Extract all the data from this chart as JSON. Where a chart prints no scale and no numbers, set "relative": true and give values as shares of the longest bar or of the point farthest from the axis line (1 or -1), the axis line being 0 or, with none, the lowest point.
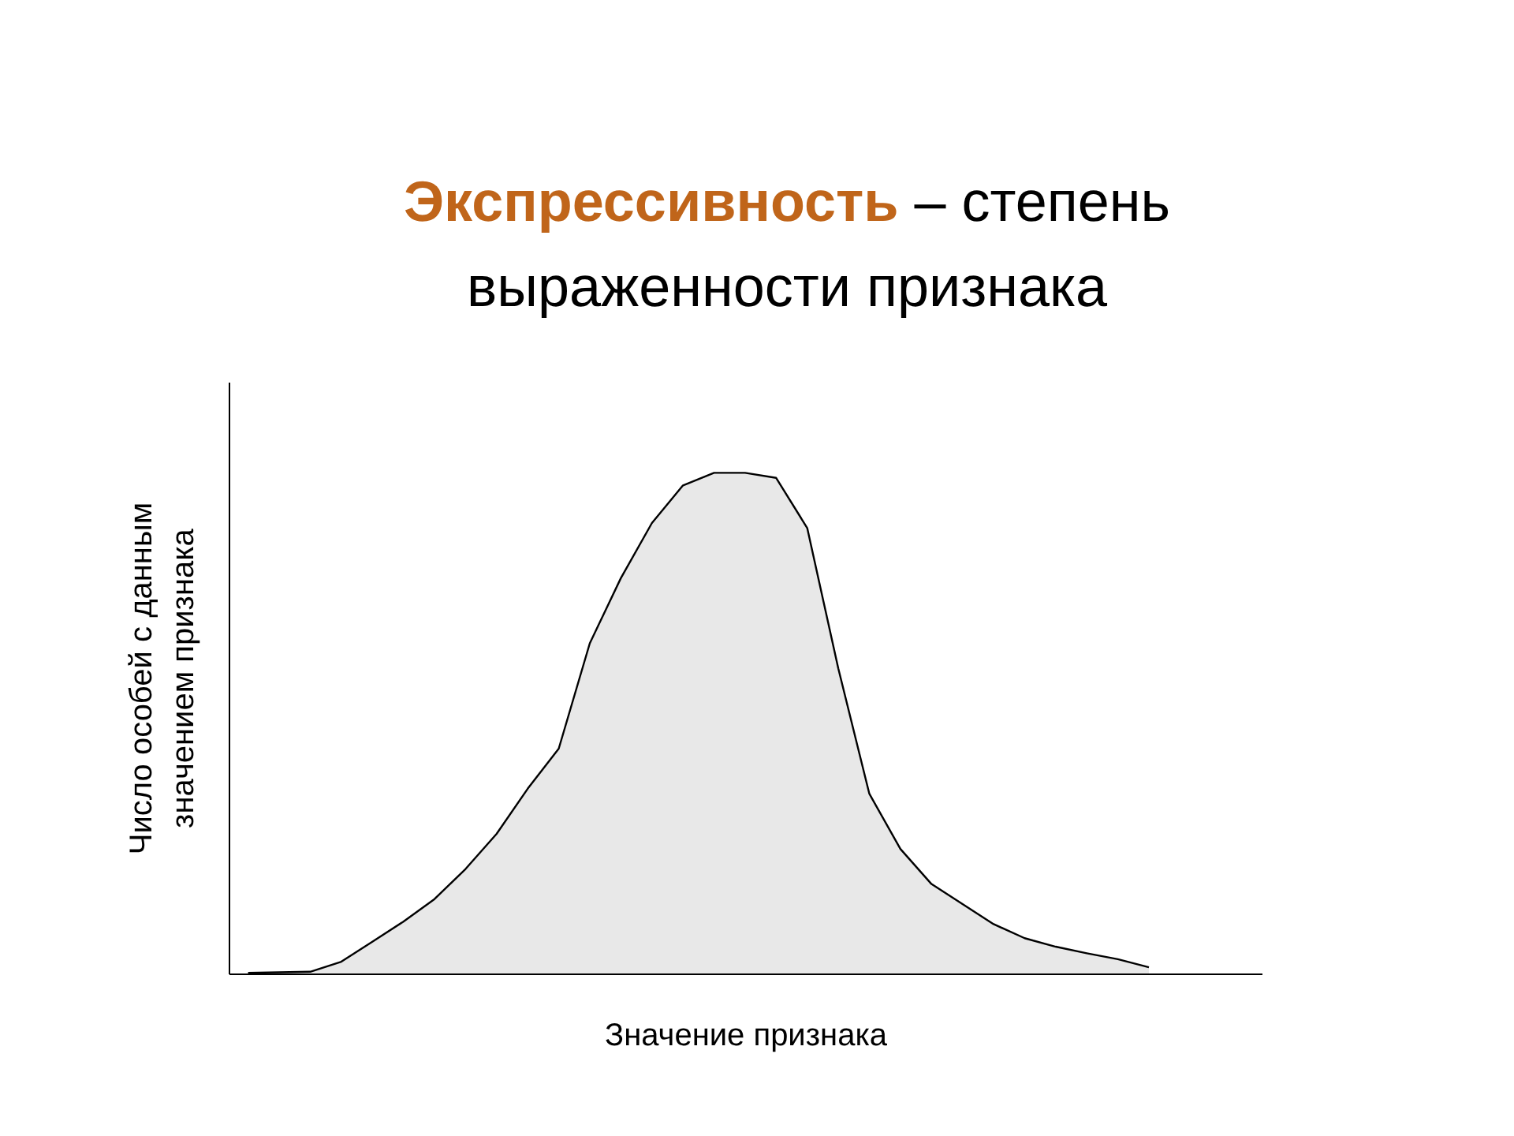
{
  "chart_data": {
    "type": "area",
    "title": "Экспрессивность – степень выраженности признака",
    "xlabel": "Значение признака",
    "ylabel": "Число особей с данным\nзначением признака",
    "relative": true,
    "grid": false,
    "categories": [
      null,
      null,
      null,
      null,
      null,
      null,
      null,
      null,
      null,
      null,
      null,
      null,
      null,
      null,
      null,
      null,
      null,
      null,
      null,
      null,
      null,
      null,
      null,
      null,
      null,
      null,
      null,
      null,
      null,
      null
    ],
    "series": [
      {
        "color": "#e8e8e8",
        "values": [
          0.003,
          0.004,
          0.005,
          0.025,
          0.065,
          0.105,
          0.15,
          0.21,
          0.28,
          0.37,
          0.45,
          0.66,
          0.79,
          0.9,
          0.975,
          1.0,
          1.0,
          0.99,
          0.89,
          0.61,
          0.36,
          0.25,
          0.18,
          0.14,
          0.1,
          0.072,
          0.055,
          0.042,
          0.03,
          0.014
        ]
      }
    ]
  }
}
